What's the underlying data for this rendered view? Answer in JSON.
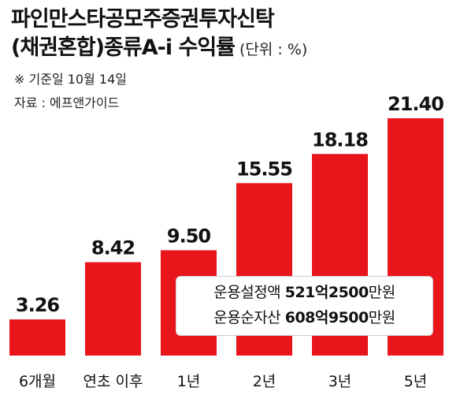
{
  "header": {
    "title_line1": "파인만스타공모주증권투자신탁",
    "title_line2": "(채권혼합)종류A-i 수익률",
    "unit": "(단위 : %)",
    "note_date": "※ 기준일 10월 14일",
    "source": "자료 : 에프앤가이드"
  },
  "info": {
    "row1_label": "운용설정액",
    "row1_value": "521억2500",
    "row1_unit": "만원",
    "row2_label": "운용순자산",
    "row2_value": "608억9500",
    "row2_unit": "만원"
  },
  "colors": {
    "bar": "#e8151b",
    "text": "#111111"
  },
  "chart_data": {
    "type": "bar",
    "title": "파인만스타공모주증권투자신탁 (채권혼합)종류A-i 수익률",
    "ylabel": "(단위 : %)",
    "categories": [
      "6개월",
      "연초 이후",
      "1년",
      "2년",
      "3년",
      "5년"
    ],
    "values": [
      3.26,
      8.42,
      9.5,
      15.55,
      18.18,
      21.4
    ],
    "value_labels": [
      "3.26",
      "8.42",
      "9.50",
      "15.55",
      "18.18",
      "21.40"
    ],
    "ylim": [
      0,
      21.4
    ],
    "grid": false,
    "legend": "none"
  }
}
